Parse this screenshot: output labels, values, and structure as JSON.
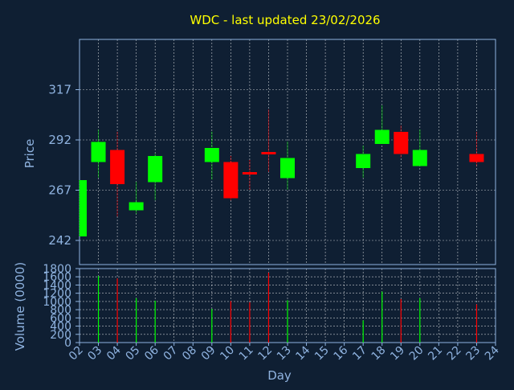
{
  "chart_data": [
    {
      "type": "candlestick",
      "title": "WDC - last updated 23/02/2026",
      "ylabel": "Price",
      "ylim": [
        230,
        342
      ],
      "yticks": [
        242,
        267,
        292,
        317
      ],
      "grid": true,
      "colors": {
        "up": "#00ff00",
        "down": "#ff0000",
        "background": "#0f1f33",
        "grid": "#ffffff",
        "axis": "#8fb3e0",
        "title": "#ffff00"
      },
      "candles": [
        {
          "day": "02",
          "open": 244,
          "high": 272,
          "low": 244,
          "close": 272
        },
        {
          "day": "03",
          "open": 281,
          "high": 297,
          "low": 273,
          "close": 291
        },
        {
          "day": "04",
          "open": 287,
          "high": 296,
          "low": 254,
          "close": 270
        },
        {
          "day": "05",
          "open": 257,
          "high": 271,
          "low": 255,
          "close": 261
        },
        {
          "day": "06",
          "open": 271,
          "high": 285,
          "low": 262,
          "close": 284
        },
        {
          "day": "09",
          "open": 281,
          "high": 296,
          "low": 272,
          "close": 288
        },
        {
          "day": "10",
          "open": 281,
          "high": 284,
          "low": 262,
          "close": 263
        },
        {
          "day": "11",
          "open": 276,
          "high": 282,
          "low": 267,
          "close": 275
        },
        {
          "day": "12",
          "open": 286,
          "high": 307,
          "low": 276,
          "close": 285
        },
        {
          "day": "13",
          "open": 273,
          "high": 291,
          "low": 267,
          "close": 283
        },
        {
          "day": "17",
          "open": 278,
          "high": 289,
          "low": 273,
          "close": 285
        },
        {
          "day": "18",
          "open": 290,
          "high": 309,
          "low": 290,
          "close": 297
        },
        {
          "day": "19",
          "open": 296,
          "high": 299,
          "low": 283,
          "close": 285
        },
        {
          "day": "20",
          "open": 279,
          "high": 297,
          "low": 279,
          "close": 287
        },
        {
          "day": "23",
          "open": 285,
          "high": 296,
          "low": 279,
          "close": 281
        }
      ]
    },
    {
      "type": "bar",
      "ylabel": "Volume (0000)",
      "xlabel": "Day",
      "ylim": [
        0,
        1800
      ],
      "yticks": [
        0,
        200,
        400,
        600,
        800,
        1000,
        1200,
        1400,
        1600,
        1800
      ],
      "categories": [
        "02",
        "03",
        "04",
        "05",
        "06",
        "07",
        "08",
        "09",
        "10",
        "11",
        "12",
        "13",
        "14",
        "15",
        "16",
        "17",
        "18",
        "19",
        "20",
        "21",
        "22",
        "23",
        "24"
      ],
      "bars": [
        {
          "day": "03",
          "value": 1620,
          "direction": "up"
        },
        {
          "day": "04",
          "value": 1560,
          "direction": "down"
        },
        {
          "day": "05",
          "value": 1080,
          "direction": "up"
        },
        {
          "day": "06",
          "value": 1020,
          "direction": "up"
        },
        {
          "day": "09",
          "value": 820,
          "direction": "up"
        },
        {
          "day": "10",
          "value": 1010,
          "direction": "down"
        },
        {
          "day": "11",
          "value": 980,
          "direction": "down"
        },
        {
          "day": "12",
          "value": 1700,
          "direction": "down"
        },
        {
          "day": "13",
          "value": 1030,
          "direction": "up"
        },
        {
          "day": "17",
          "value": 540,
          "direction": "up"
        },
        {
          "day": "18",
          "value": 1240,
          "direction": "up"
        },
        {
          "day": "19",
          "value": 1060,
          "direction": "down"
        },
        {
          "day": "20",
          "value": 1080,
          "direction": "up"
        },
        {
          "day": "23",
          "value": 930,
          "direction": "down"
        }
      ]
    }
  ]
}
